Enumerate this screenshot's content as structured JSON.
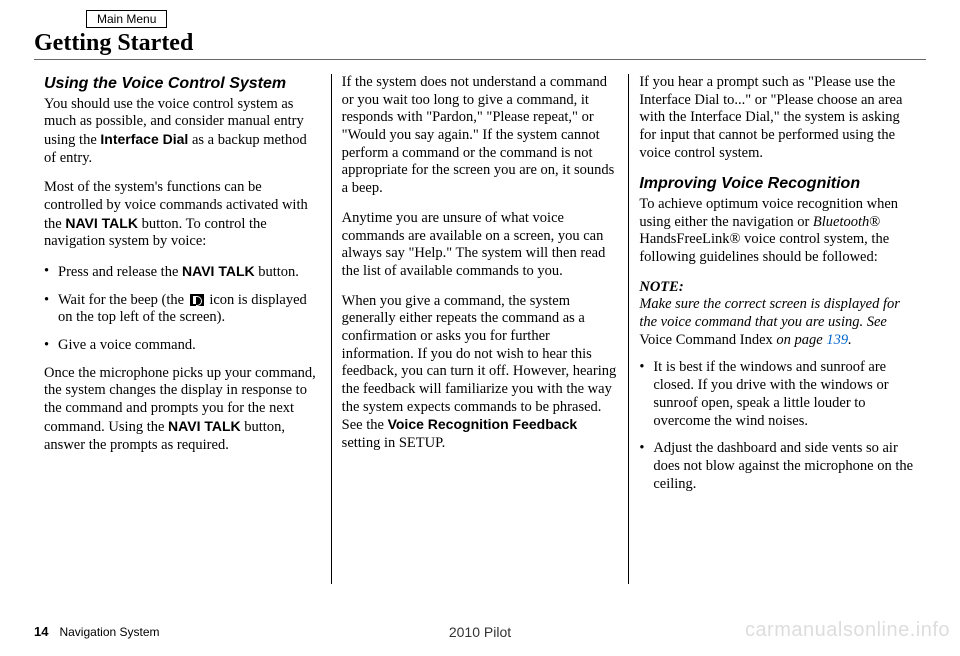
{
  "menu_button": "Main Menu",
  "title": "Getting Started",
  "col1": {
    "subhead": "Using the Voice Control System",
    "p1a": "You should use the voice control system as much as possible, and consider manual entry using the ",
    "p1b": "Interface Dial",
    "p1c": " as a backup method of entry.",
    "p2a": "Most of the system's functions can be controlled by voice commands activated with the ",
    "p2b": "NAVI TALK",
    "p2c": " button. To control the navigation system by voice:",
    "li1a": "Press and release the ",
    "li1b": "NAVI TALK",
    "li1c": " button.",
    "li2a": "Wait for the beep (the ",
    "li2b": " icon is displayed on the top left of the screen).",
    "li3": "Give a voice command.",
    "p3a": "Once the microphone picks up your command, the system changes the display in response to the command and prompts you for the next command. Using the ",
    "p3b": "NAVI TALK",
    "p3c": " button, answer the prompts as required."
  },
  "col2": {
    "p1": "If the system does not understand a command or you wait too long to give a command, it responds with \"Pardon,\" \"Please repeat,\" or \"Would you say again.\" If the system cannot perform a command or the command is not appropriate for the screen you are on, it sounds a beep.",
    "p2": "Anytime you are unsure of what voice commands are available on a screen, you can always say \"Help.\" The system will then read the list of available commands to you.",
    "p3a": "When you give a command, the system generally either repeats the command as a confirmation or asks you for further information. If you do not wish to hear this feedback, you can turn it off. However, hearing the feedback will familiarize you with the way the system expects commands to be phrased. See the ",
    "p3b": "Voice Recognition Feedback",
    "p3c": " setting in SETUP."
  },
  "col3": {
    "p1": "If you hear a prompt such as \"Please use the Interface Dial to...\" or \"Please choose an area with the Interface Dial,\" the system is asking for input that cannot be performed using the voice control system.",
    "subhead": "Improving Voice Recognition",
    "p2a": "To achieve optimum voice recognition when using either the navigation or ",
    "p2b": "Bluetooth",
    "p2c": "® HandsFreeLink® voice control system, the following guidelines should be followed:",
    "note_head": "NOTE:",
    "note_a": "Make sure the correct screen is displayed for the voice command that you are using. See ",
    "note_b": "Voice Command Index",
    "note_c": " on page ",
    "note_link": "139",
    "note_d": ".",
    "li1": "It is best if the windows and sunroof are closed. If you drive with the windows or sunroof open, speak a little louder to overcome the wind noises.",
    "li2": "Adjust the dashboard and side vents so air does not blow against the microphone on the ceiling."
  },
  "footer": {
    "page": "14",
    "label": "Navigation System",
    "vehicle": "2010 Pilot",
    "watermark": "carmanualsonline.info"
  }
}
